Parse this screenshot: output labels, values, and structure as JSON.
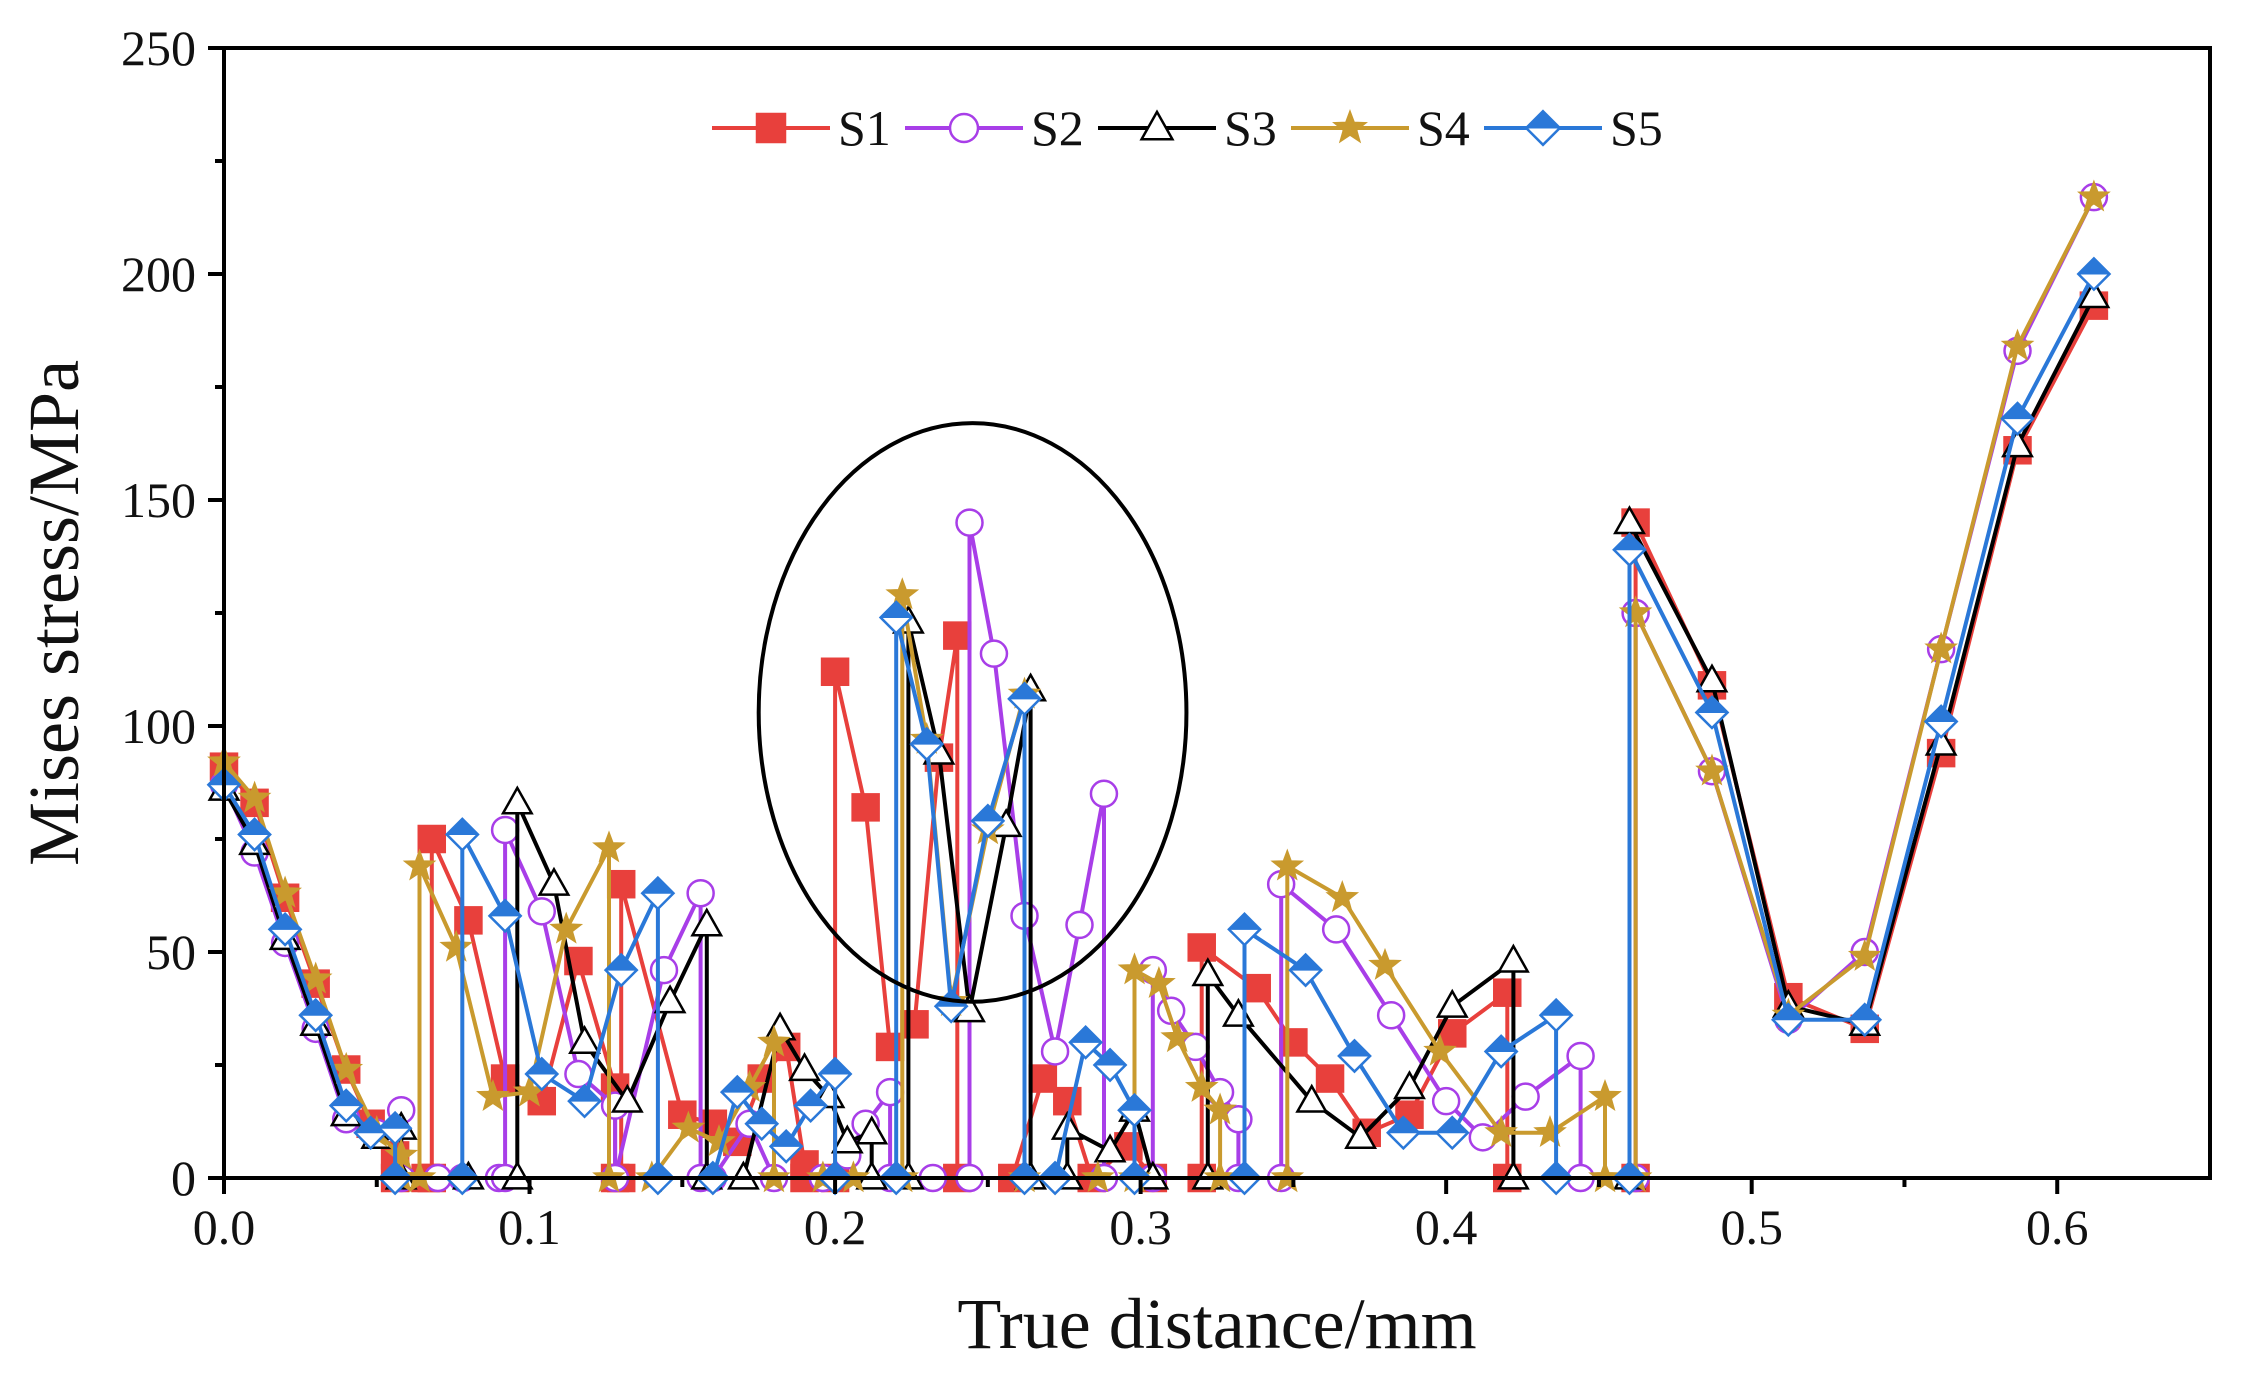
{
  "chart_data": {
    "type": "line",
    "xlabel": "True distance/mm",
    "ylabel": "Mises stress/MPa",
    "xlim": [
      0.0,
      0.65
    ],
    "ylim": [
      0,
      250
    ],
    "x_ticks": [
      0.0,
      0.1,
      0.2,
      0.3,
      0.4,
      0.5,
      0.6
    ],
    "x_tick_labels": [
      "0.0",
      "0.1",
      "0.2",
      "0.3",
      "0.4",
      "0.5",
      "0.6"
    ],
    "y_ticks": [
      0,
      50,
      100,
      150,
      200,
      250
    ],
    "y_tick_labels": [
      "0",
      "50",
      "100",
      "150",
      "200",
      "250"
    ],
    "legend_position": "top-center",
    "series": [
      {
        "name": "S1",
        "color": "#e8403c",
        "marker": "square",
        "points": [
          [
            0.0,
            91
          ],
          [
            0.01,
            83
          ],
          [
            0.02,
            62
          ],
          [
            0.03,
            43
          ],
          [
            0.04,
            24
          ],
          [
            0.048,
            12
          ],
          [
            0.056,
            5
          ],
          [
            0.056,
            0
          ],
          [
            0.066,
            0
          ],
          [
            0.068,
            0
          ],
          [
            0.068,
            75
          ],
          [
            0.08,
            57
          ],
          [
            0.092,
            22
          ],
          [
            0.104,
            17
          ],
          [
            0.116,
            48
          ],
          [
            0.128,
            20
          ],
          [
            0.128,
            0
          ],
          [
            0.13,
            0
          ],
          [
            0.13,
            65
          ],
          [
            0.15,
            14
          ],
          [
            0.16,
            12
          ],
          [
            0.168,
            8
          ],
          [
            0.176,
            22
          ],
          [
            0.184,
            29
          ],
          [
            0.19,
            3
          ],
          [
            0.19,
            0
          ],
          [
            0.2,
            0
          ],
          [
            0.2,
            112
          ],
          [
            0.21,
            82
          ],
          [
            0.218,
            29
          ],
          [
            0.226,
            34
          ],
          [
            0.234,
            93
          ],
          [
            0.24,
            120
          ],
          [
            0.24,
            0
          ],
          [
            0.258,
            0
          ],
          [
            0.268,
            22
          ],
          [
            0.276,
            17
          ],
          [
            0.284,
            0
          ],
          [
            0.296,
            7
          ],
          [
            0.304,
            0
          ],
          [
            0.32,
            0
          ],
          [
            0.32,
            51
          ],
          [
            0.338,
            42
          ],
          [
            0.35,
            30
          ],
          [
            0.362,
            22
          ],
          [
            0.374,
            10
          ],
          [
            0.388,
            14
          ],
          [
            0.402,
            32
          ],
          [
            0.42,
            41
          ],
          [
            0.42,
            0
          ],
          [
            0.462,
            0
          ],
          [
            0.462,
            145
          ],
          [
            0.487,
            109
          ],
          [
            0.512,
            40
          ],
          [
            0.537,
            33
          ],
          [
            0.562,
            94
          ],
          [
            0.587,
            161
          ],
          [
            0.612,
            193
          ]
        ]
      },
      {
        "name": "S2",
        "color": "#a83ee8",
        "marker": "circle",
        "points": [
          [
            0.0,
            87
          ],
          [
            0.01,
            72
          ],
          [
            0.02,
            52
          ],
          [
            0.03,
            33
          ],
          [
            0.04,
            13
          ],
          [
            0.05,
            10
          ],
          [
            0.058,
            15
          ],
          [
            0.058,
            0
          ],
          [
            0.07,
            0
          ],
          [
            0.078,
            0
          ],
          [
            0.09,
            0
          ],
          [
            0.092,
            0
          ],
          [
            0.092,
            77
          ],
          [
            0.104,
            59
          ],
          [
            0.116,
            23
          ],
          [
            0.128,
            16
          ],
          [
            0.128,
            0
          ],
          [
            0.144,
            46
          ],
          [
            0.156,
            63
          ],
          [
            0.156,
            0
          ],
          [
            0.16,
            0
          ],
          [
            0.172,
            12
          ],
          [
            0.18,
            0
          ],
          [
            0.196,
            0
          ],
          [
            0.204,
            5
          ],
          [
            0.21,
            12
          ],
          [
            0.218,
            19
          ],
          [
            0.218,
            0
          ],
          [
            0.232,
            0
          ],
          [
            0.244,
            0
          ],
          [
            0.244,
            145
          ],
          [
            0.252,
            116
          ],
          [
            0.262,
            58
          ],
          [
            0.272,
            28
          ],
          [
            0.28,
            56
          ],
          [
            0.288,
            85
          ],
          [
            0.288,
            0
          ],
          [
            0.304,
            0
          ],
          [
            0.304,
            46
          ],
          [
            0.31,
            37
          ],
          [
            0.318,
            29
          ],
          [
            0.326,
            19
          ],
          [
            0.332,
            13
          ],
          [
            0.332,
            0
          ],
          [
            0.346,
            0
          ],
          [
            0.346,
            65
          ],
          [
            0.364,
            55
          ],
          [
            0.382,
            36
          ],
          [
            0.4,
            17
          ],
          [
            0.412,
            9
          ],
          [
            0.426,
            18
          ],
          [
            0.444,
            27
          ],
          [
            0.444,
            0
          ],
          [
            0.462,
            0
          ],
          [
            0.462,
            125
          ],
          [
            0.487,
            90
          ],
          [
            0.512,
            35
          ],
          [
            0.537,
            50
          ],
          [
            0.562,
            117
          ],
          [
            0.587,
            183
          ],
          [
            0.612,
            217
          ]
        ]
      },
      {
        "name": "S3",
        "color": "#000000",
        "marker": "triangle",
        "points": [
          [
            0.0,
            86
          ],
          [
            0.01,
            74
          ],
          [
            0.02,
            53
          ],
          [
            0.03,
            34
          ],
          [
            0.04,
            14
          ],
          [
            0.05,
            9
          ],
          [
            0.058,
            11
          ],
          [
            0.058,
            0
          ],
          [
            0.08,
            0
          ],
          [
            0.096,
            0
          ],
          [
            0.096,
            83
          ],
          [
            0.108,
            65
          ],
          [
            0.118,
            30
          ],
          [
            0.132,
            17
          ],
          [
            0.146,
            39
          ],
          [
            0.158,
            56
          ],
          [
            0.158,
            0
          ],
          [
            0.17,
            0
          ],
          [
            0.182,
            33
          ],
          [
            0.19,
            24
          ],
          [
            0.198,
            18
          ],
          [
            0.204,
            8
          ],
          [
            0.212,
            10
          ],
          [
            0.212,
            0
          ],
          [
            0.224,
            0
          ],
          [
            0.224,
            123
          ],
          [
            0.234,
            94
          ],
          [
            0.244,
            37
          ],
          [
            0.256,
            78
          ],
          [
            0.264,
            108
          ],
          [
            0.264,
            0
          ],
          [
            0.276,
            0
          ],
          [
            0.276,
            11
          ],
          [
            0.29,
            6
          ],
          [
            0.298,
            15
          ],
          [
            0.304,
            0
          ],
          [
            0.322,
            0
          ],
          [
            0.322,
            45
          ],
          [
            0.332,
            36
          ],
          [
            0.356,
            17
          ],
          [
            0.372,
            9
          ],
          [
            0.388,
            20
          ],
          [
            0.402,
            38
          ],
          [
            0.422,
            48
          ],
          [
            0.422,
            0
          ],
          [
            0.46,
            0
          ],
          [
            0.46,
            145
          ],
          [
            0.487,
            110
          ],
          [
            0.512,
            38
          ],
          [
            0.537,
            34
          ],
          [
            0.562,
            96
          ],
          [
            0.587,
            162
          ],
          [
            0.612,
            195
          ]
        ]
      },
      {
        "name": "S4",
        "color": "#c99a2e",
        "marker": "star",
        "points": [
          [
            0.0,
            92
          ],
          [
            0.01,
            84
          ],
          [
            0.02,
            63
          ],
          [
            0.03,
            44
          ],
          [
            0.04,
            24
          ],
          [
            0.05,
            10
          ],
          [
            0.058,
            5
          ],
          [
            0.058,
            0
          ],
          [
            0.064,
            0
          ],
          [
            0.064,
            69
          ],
          [
            0.076,
            51
          ],
          [
            0.088,
            18
          ],
          [
            0.1,
            19
          ],
          [
            0.112,
            55
          ],
          [
            0.126,
            73
          ],
          [
            0.126,
            0
          ],
          [
            0.14,
            0
          ],
          [
            0.152,
            11
          ],
          [
            0.162,
            8
          ],
          [
            0.172,
            20
          ],
          [
            0.18,
            30
          ],
          [
            0.18,
            0
          ],
          [
            0.196,
            0
          ],
          [
            0.206,
            0
          ],
          [
            0.222,
            0
          ],
          [
            0.222,
            129
          ],
          [
            0.23,
            97
          ],
          [
            0.238,
            39
          ],
          [
            0.25,
            77
          ],
          [
            0.262,
            107
          ],
          [
            0.262,
            0
          ],
          [
            0.286,
            0
          ],
          [
            0.298,
            0
          ],
          [
            0.298,
            46
          ],
          [
            0.306,
            43
          ],
          [
            0.312,
            31
          ],
          [
            0.32,
            20
          ],
          [
            0.326,
            15
          ],
          [
            0.326,
            0
          ],
          [
            0.348,
            0
          ],
          [
            0.348,
            69
          ],
          [
            0.366,
            62
          ],
          [
            0.38,
            47
          ],
          [
            0.398,
            28
          ],
          [
            0.418,
            10
          ],
          [
            0.434,
            10
          ],
          [
            0.452,
            18
          ],
          [
            0.452,
            0
          ],
          [
            0.462,
            0
          ],
          [
            0.462,
            125
          ],
          [
            0.487,
            90
          ],
          [
            0.512,
            36
          ],
          [
            0.537,
            49
          ],
          [
            0.562,
            117
          ],
          [
            0.587,
            184
          ],
          [
            0.612,
            217
          ]
        ]
      },
      {
        "name": "S5",
        "color": "#2a78d8",
        "marker": "diamond",
        "points": [
          [
            0.0,
            87
          ],
          [
            0.01,
            76
          ],
          [
            0.02,
            55
          ],
          [
            0.03,
            36
          ],
          [
            0.04,
            16
          ],
          [
            0.048,
            10
          ],
          [
            0.056,
            11
          ],
          [
            0.056,
            0
          ],
          [
            0.078,
            0
          ],
          [
            0.078,
            76
          ],
          [
            0.092,
            58
          ],
          [
            0.104,
            23
          ],
          [
            0.118,
            17
          ],
          [
            0.13,
            46
          ],
          [
            0.142,
            63
          ],
          [
            0.142,
            0
          ],
          [
            0.16,
            0
          ],
          [
            0.168,
            19
          ],
          [
            0.176,
            12
          ],
          [
            0.184,
            7
          ],
          [
            0.192,
            16
          ],
          [
            0.2,
            23
          ],
          [
            0.2,
            0
          ],
          [
            0.22,
            0
          ],
          [
            0.22,
            124
          ],
          [
            0.23,
            96
          ],
          [
            0.238,
            38
          ],
          [
            0.25,
            79
          ],
          [
            0.262,
            106
          ],
          [
            0.262,
            0
          ],
          [
            0.272,
            0
          ],
          [
            0.282,
            30
          ],
          [
            0.29,
            25
          ],
          [
            0.298,
            15
          ],
          [
            0.298,
            0
          ],
          [
            0.334,
            0
          ],
          [
            0.334,
            55
          ],
          [
            0.354,
            46
          ],
          [
            0.37,
            27
          ],
          [
            0.386,
            10
          ],
          [
            0.402,
            10
          ],
          [
            0.418,
            28
          ],
          [
            0.436,
            36
          ],
          [
            0.436,
            0
          ],
          [
            0.46,
            0
          ],
          [
            0.46,
            139
          ],
          [
            0.487,
            103
          ],
          [
            0.512,
            35
          ],
          [
            0.537,
            35
          ],
          [
            0.562,
            101
          ],
          [
            0.587,
            168
          ],
          [
            0.612,
            200
          ]
        ]
      }
    ],
    "annotations": [
      {
        "type": "ellipse",
        "label": "",
        "center": [
          0.245,
          103
        ],
        "radius_x": 0.07,
        "radius_y": 64
      }
    ]
  }
}
